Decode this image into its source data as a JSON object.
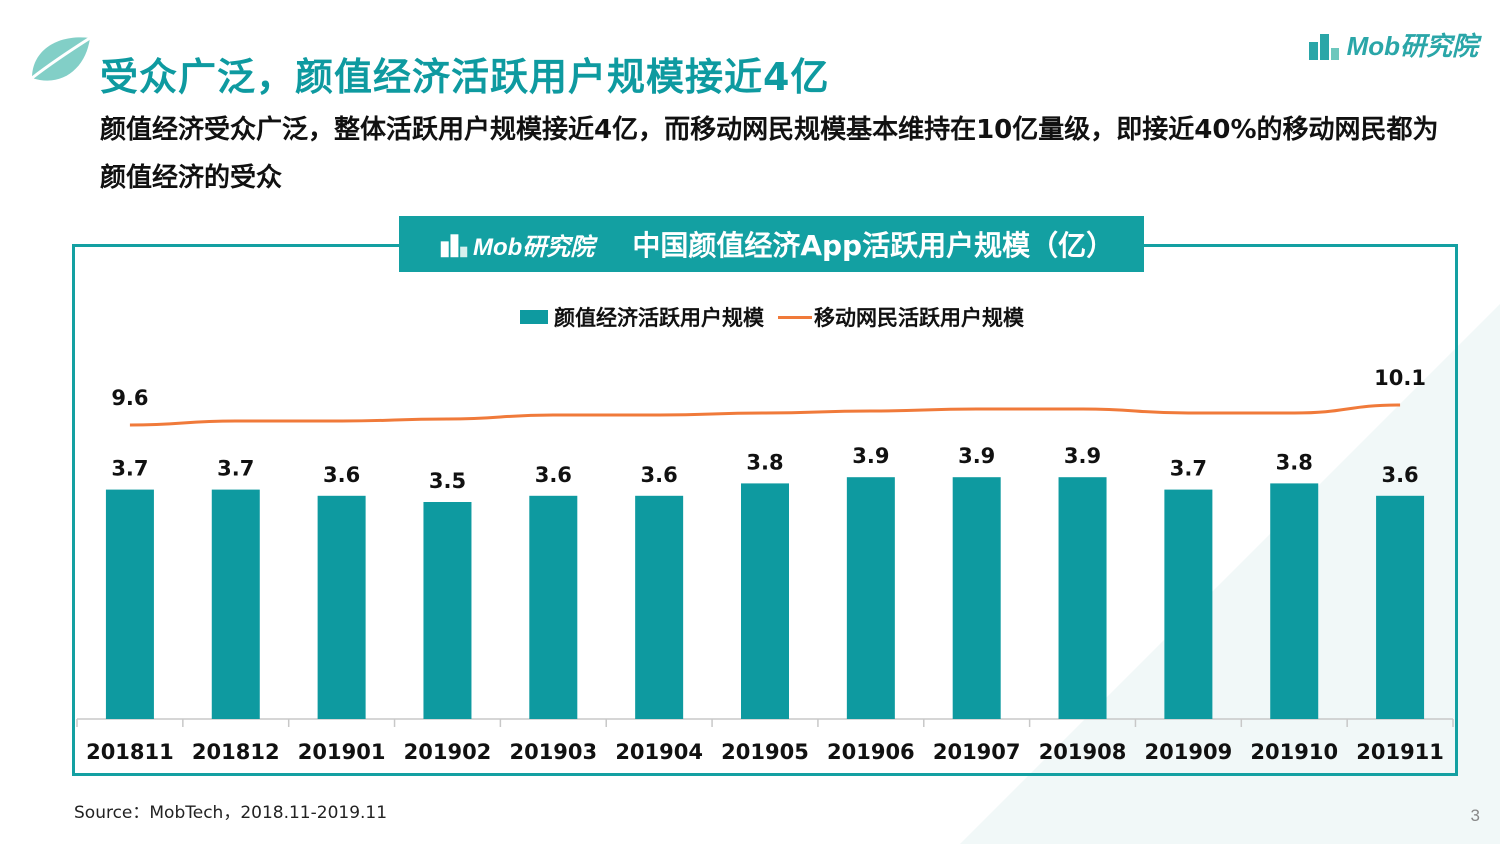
{
  "header": {
    "title": "受众广泛，颜值经济活跃用户规模接近4亿",
    "logo_text": "Mob研究院"
  },
  "subtitle": "颜值经济受众广泛，整体活跃用户规模接近4亿，而移动网民规模基本维持在10亿量级，即接近40%的移动网民都为颜值经济的受众",
  "chart_header": {
    "logo_text": "Mob研究院",
    "title": "中国颜值经济App活跃用户规模（亿）"
  },
  "legend": {
    "bar_label": "颜值经济活跃用户规模",
    "line_label": "移动网民活跃用户规模"
  },
  "chart_data": {
    "type": "bar",
    "categories": [
      "201811",
      "201812",
      "201901",
      "201902",
      "201903",
      "201904",
      "201905",
      "201906",
      "201907",
      "201908",
      "201909",
      "201910",
      "201911"
    ],
    "series": [
      {
        "name": "颜值经济活跃用户规模",
        "type": "bar",
        "values": [
          3.7,
          3.7,
          3.6,
          3.5,
          3.6,
          3.6,
          3.8,
          3.9,
          3.9,
          3.9,
          3.7,
          3.8,
          3.6
        ],
        "show_labels": "all"
      },
      {
        "name": "移动网民活跃用户规模",
        "type": "line",
        "values": [
          9.6,
          9.7,
          9.7,
          9.75,
          9.85,
          9.85,
          9.9,
          9.95,
          10.0,
          10.0,
          9.9,
          9.9,
          10.1
        ],
        "labeled_values": [
          "9.6",
          "10.1"
        ]
      }
    ],
    "colors": {
      "bar": "#0e9aa0",
      "line": "#f07a3a"
    },
    "bar_ylim": [
      0,
      5.3
    ],
    "line_ylim": [
      5.2,
      11.9
    ],
    "grid": false,
    "legend_position": "top-center"
  },
  "source": "Source：MobTech，2018.11-2019.11",
  "page_number": "3"
}
